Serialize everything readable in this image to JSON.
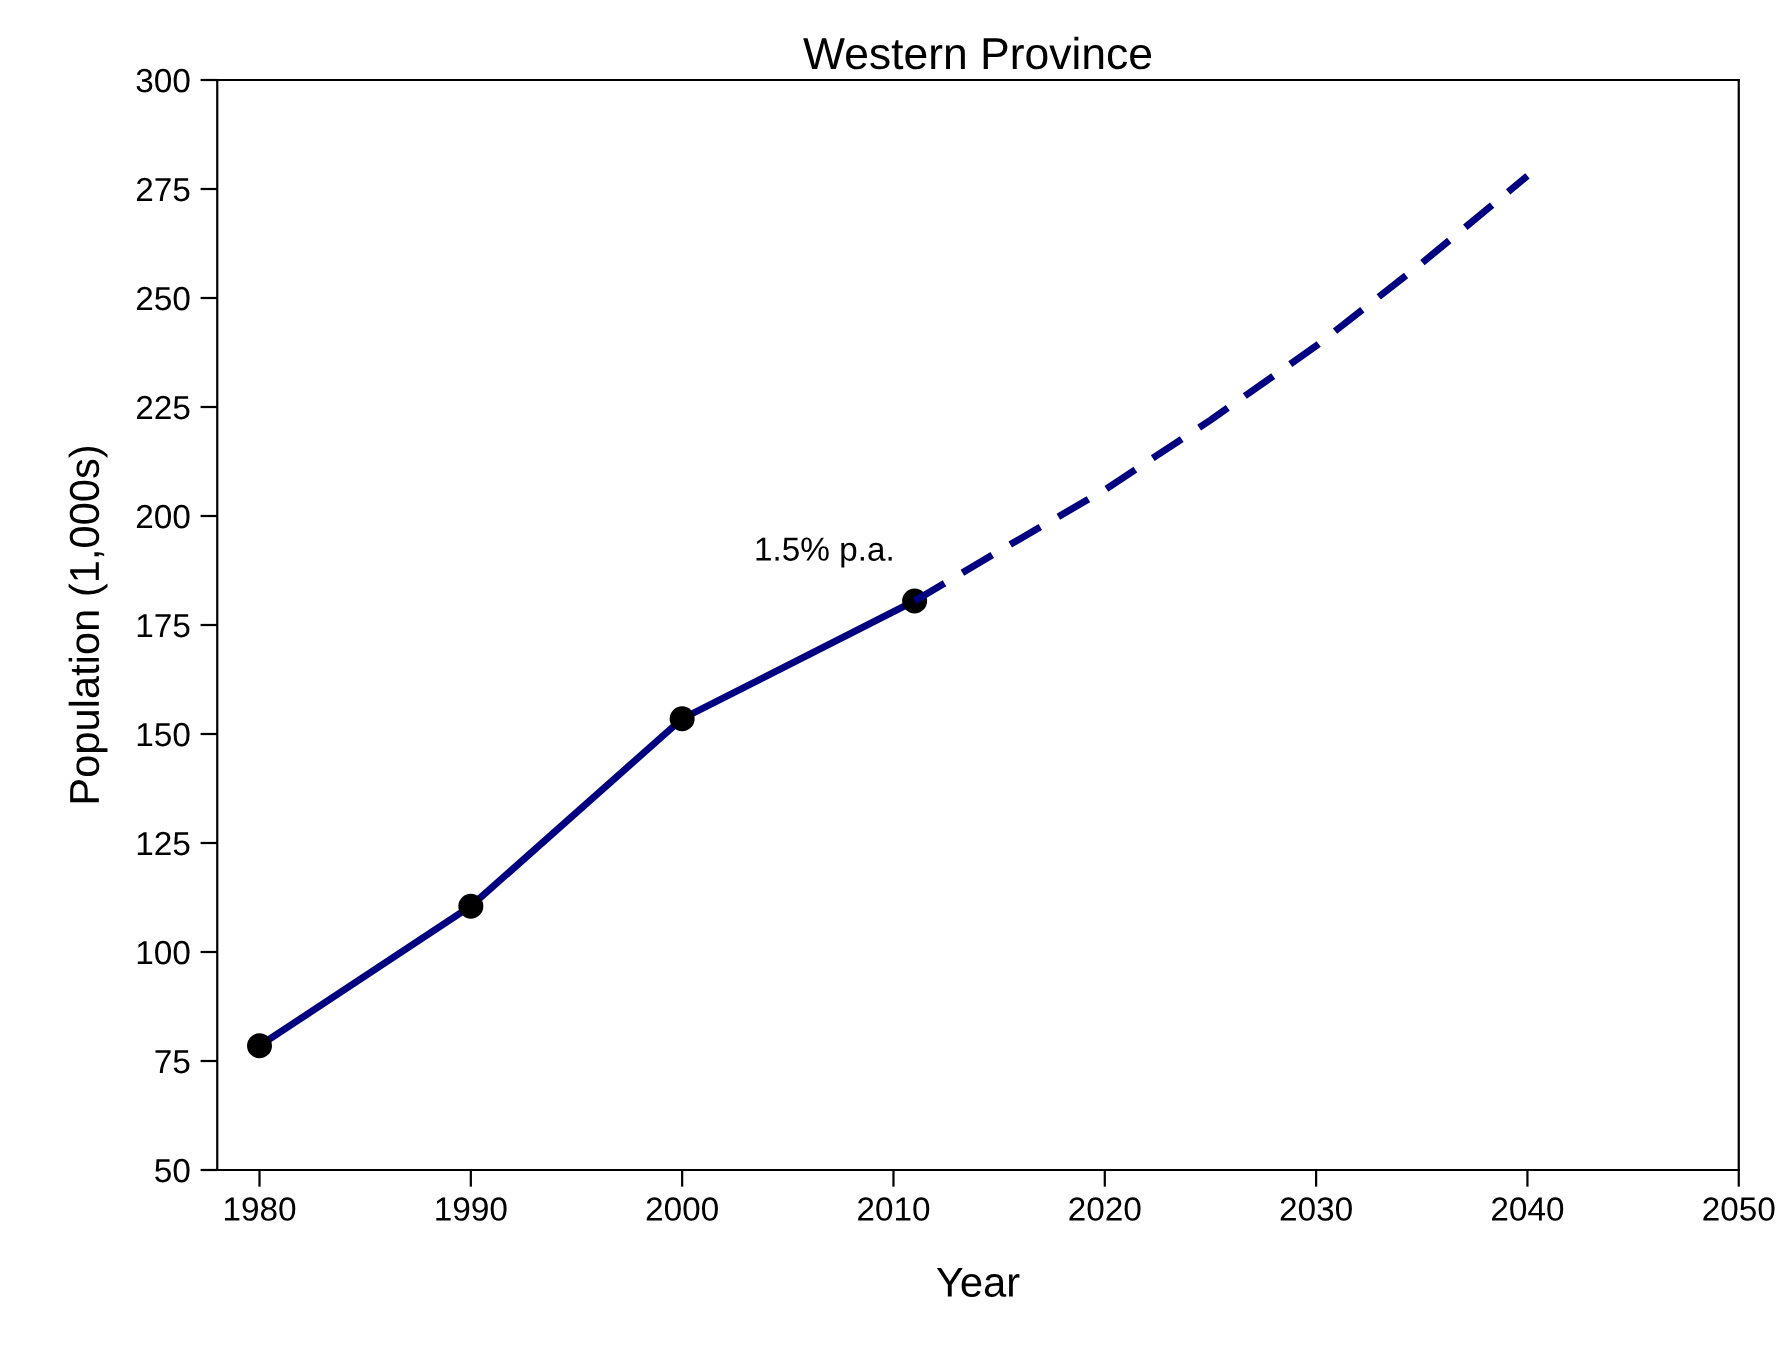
{
  "chart_data": {
    "type": "line",
    "title": "Western Province",
    "xlabel": "Year",
    "ylabel": "Population (1,000s)",
    "series": [
      {
        "color": "#000080",
        "x": [
          1980,
          1990,
          2000,
          2011
        ],
        "values": [
          78.5,
          110.5,
          153.5,
          180.5
        ],
        "marker": "circle",
        "line_style": "solid"
      },
      {
        "color": "#000080",
        "x": [
          2011,
          2015,
          2020,
          2025,
          2030,
          2035,
          2040
        ],
        "values": [
          180.5,
          192,
          206,
          222,
          239,
          258,
          278
        ],
        "marker": "none",
        "line_style": "dashed"
      }
    ],
    "annotations": [
      "1.5% p.a."
    ],
    "xlim": [
      1978,
      2050
    ],
    "xticks": [
      1980,
      1990,
      2000,
      2010,
      2020,
      2030,
      2040,
      2050
    ],
    "ylim": [
      50,
      300
    ],
    "yticks": [
      50,
      75,
      100,
      125,
      150,
      175,
      200,
      225,
      250,
      275,
      300
    ],
    "grid": false
  }
}
